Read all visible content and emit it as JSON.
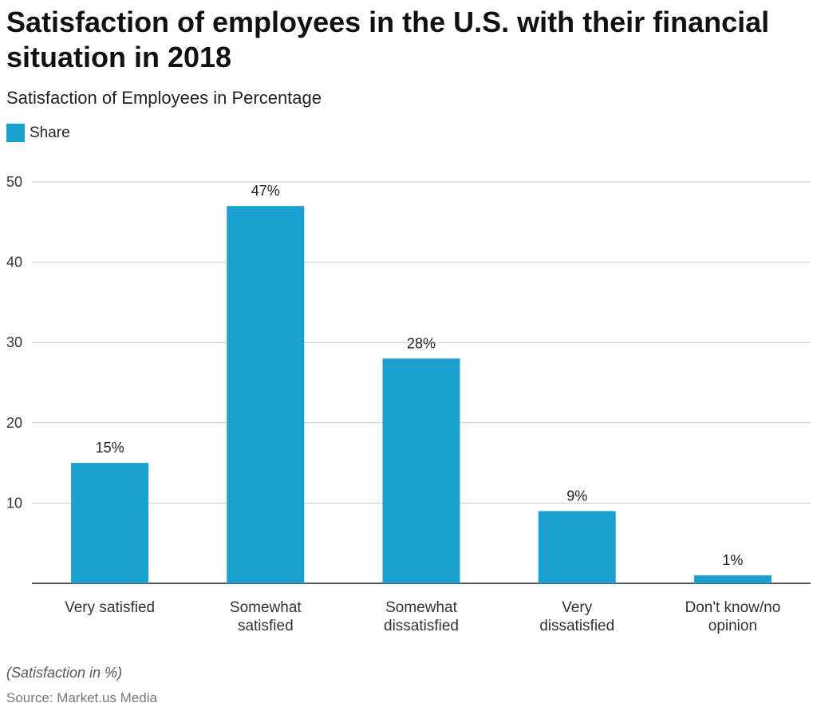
{
  "title": "Satisfaction of employees in the U.S. with their financial situation in 2018",
  "subtitle": "Satisfaction of Employees in Percentage",
  "legend": {
    "label": "Share",
    "color": "#1ba1cf"
  },
  "note": "(Satisfaction in %)",
  "source": "Source: Market.us Media",
  "chart_data": {
    "type": "bar",
    "categories": [
      "Very satisfied",
      "Somewhat satisfied",
      "Somewhat dissatisfied",
      "Very dissatisfied",
      "Don't know/no opinion"
    ],
    "series": [
      {
        "name": "Share",
        "values": [
          15,
          47,
          28,
          9,
          1
        ],
        "color": "#1ba1cf"
      }
    ],
    "data_labels": [
      "15%",
      "47%",
      "28%",
      "9%",
      "1%"
    ],
    "y_ticks": [
      10,
      20,
      30,
      40,
      50
    ],
    "ylim": [
      0,
      50
    ],
    "grid": true,
    "legend_position": "top-left"
  }
}
